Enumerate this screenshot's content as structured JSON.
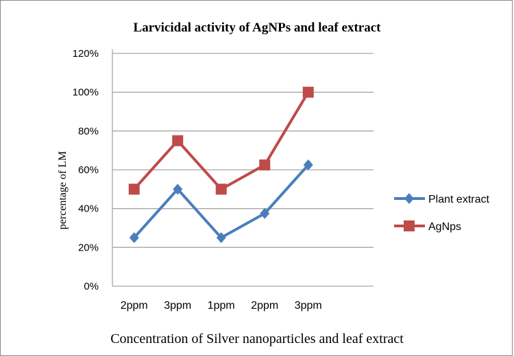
{
  "chart_data": {
    "type": "line",
    "title": "Larvicidal activity of AgNPs and leaf extract",
    "xlabel": "Concentration of Silver nanoparticles and leaf extract",
    "ylabel": "percentage of LM",
    "categories": [
      "2ppm",
      "3ppm",
      "1ppm",
      "2ppm",
      "3ppm"
    ],
    "ylim": [
      0,
      120
    ],
    "yticks": [
      "0%",
      "20%",
      "40%",
      "60%",
      "80%",
      "100%",
      "120%"
    ],
    "grid": true,
    "legend_position": "right",
    "series": [
      {
        "name": "Plant extract",
        "values": [
          25,
          50,
          25,
          37.5,
          62.5
        ],
        "color": "#4a7ebb",
        "marker": "diamond"
      },
      {
        "name": "AgNps",
        "values": [
          50,
          75,
          50,
          62.5,
          100
        ],
        "color": "#be4b48",
        "marker": "square"
      }
    ]
  }
}
